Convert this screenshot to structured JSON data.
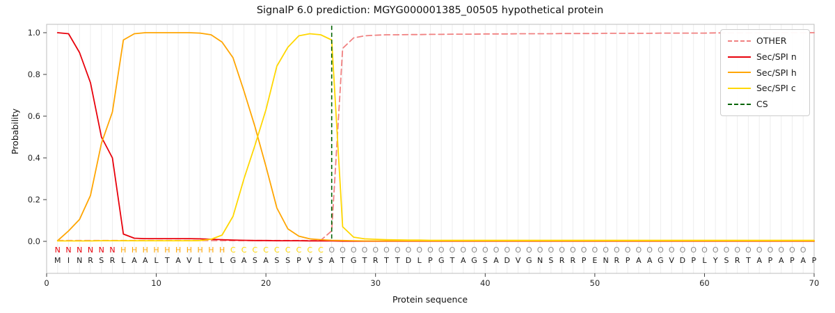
{
  "chart_data": {
    "type": "line",
    "title": "SignalP 6.0 prediction: MGYG000001385_00505 hypothetical protein",
    "xlabel": "Protein sequence",
    "ylabel": "Probability",
    "xlim": [
      0,
      70
    ],
    "ylim": [
      -0.15,
      1.04
    ],
    "xticks": [
      0,
      10,
      20,
      30,
      40,
      50,
      60,
      70
    ],
    "yticks": [
      0.0,
      0.2,
      0.4,
      0.6,
      0.8,
      1.0
    ],
    "grid": "vertical-per-residue",
    "legend_position": "upper-right",
    "x_start": 1,
    "series": [
      {
        "name": "OTHER",
        "color": "#f08080",
        "dashed": true,
        "values": [
          0.004,
          0.004,
          0.004,
          0.004,
          0.004,
          0.004,
          0.004,
          0.004,
          0.004,
          0.004,
          0.004,
          0.004,
          0.004,
          0.004,
          0.004,
          0.004,
          0.004,
          0.004,
          0.004,
          0.004,
          0.004,
          0.004,
          0.004,
          0.004,
          0.005,
          0.05,
          0.925,
          0.975,
          0.985,
          0.988,
          0.99,
          0.99,
          0.991,
          0.991,
          0.992,
          0.992,
          0.993,
          0.993,
          0.993,
          0.994,
          0.994,
          0.994,
          0.995,
          0.995,
          0.995,
          0.995,
          0.996,
          0.996,
          0.996,
          0.996,
          0.997,
          0.997,
          0.997,
          0.997,
          0.997,
          0.998,
          0.998,
          0.998,
          0.998,
          0.998,
          0.999,
          0.999,
          0.999,
          0.999,
          0.999,
          0.999,
          1.0,
          1.0,
          1.0,
          1.0
        ]
      },
      {
        "name": "Sec/SPI n",
        "color": "#e8000b",
        "dashed": false,
        "values": [
          1.0,
          0.995,
          0.905,
          0.76,
          0.5,
          0.4,
          0.035,
          0.015,
          0.013,
          0.013,
          0.013,
          0.013,
          0.013,
          0.012,
          0.01,
          0.008,
          0.006,
          0.005,
          0.004,
          0.004,
          0.003,
          0.003,
          0.003,
          0.002,
          0.002,
          0.002,
          0.001,
          0.001,
          0.001,
          0.001,
          0.001,
          0.001,
          0.001,
          0.001,
          0.001,
          0.001,
          0.001,
          0.001,
          0.001,
          0.001,
          0.001,
          0.001,
          0.001,
          0.001,
          0.001,
          0.001,
          0.001,
          0.001,
          0.001,
          0.001,
          0.001,
          0.001,
          0.001,
          0.001,
          0.001,
          0.001,
          0.001,
          0.001,
          0.001,
          0.001,
          0.001,
          0.001,
          0.001,
          0.001,
          0.001,
          0.001,
          0.001,
          0.001,
          0.001,
          0.001
        ]
      },
      {
        "name": "Sec/SPI h",
        "color": "#ffa500",
        "dashed": false,
        "values": [
          0.003,
          0.05,
          0.105,
          0.22,
          0.47,
          0.62,
          0.965,
          0.995,
          1.0,
          1.0,
          1.0,
          1.0,
          1.0,
          0.998,
          0.99,
          0.955,
          0.88,
          0.72,
          0.55,
          0.36,
          0.16,
          0.06,
          0.025,
          0.012,
          0.008,
          0.005,
          0.004,
          0.003,
          0.002,
          0.002,
          0.002,
          0.002,
          0.002,
          0.002,
          0.002,
          0.002,
          0.002,
          0.002,
          0.002,
          0.002,
          0.002,
          0.002,
          0.002,
          0.002,
          0.002,
          0.002,
          0.002,
          0.002,
          0.002,
          0.002,
          0.002,
          0.002,
          0.002,
          0.002,
          0.002,
          0.002,
          0.002,
          0.002,
          0.002,
          0.002,
          0.002,
          0.002,
          0.002,
          0.002,
          0.002,
          0.002,
          0.002,
          0.002,
          0.002,
          0.002
        ]
      },
      {
        "name": "Sec/SPI c",
        "color": "#ffd700",
        "dashed": false,
        "values": [
          0.002,
          0.002,
          0.002,
          0.002,
          0.003,
          0.003,
          0.003,
          0.003,
          0.003,
          0.003,
          0.003,
          0.003,
          0.003,
          0.004,
          0.01,
          0.03,
          0.12,
          0.3,
          0.46,
          0.63,
          0.84,
          0.93,
          0.985,
          0.995,
          0.99,
          0.965,
          0.07,
          0.02,
          0.012,
          0.01,
          0.008,
          0.007,
          0.006,
          0.006,
          0.005,
          0.005,
          0.005,
          0.005,
          0.005,
          0.005,
          0.005,
          0.005,
          0.005,
          0.005,
          0.005,
          0.005,
          0.005,
          0.005,
          0.005,
          0.005,
          0.005,
          0.005,
          0.005,
          0.005,
          0.005,
          0.005,
          0.005,
          0.005,
          0.005,
          0.005,
          0.005,
          0.005,
          0.005,
          0.005,
          0.005,
          0.005,
          0.005,
          0.005,
          0.005,
          0.005
        ]
      }
    ],
    "cs_line": {
      "label": "CS",
      "x": 26,
      "color": "#006400",
      "dashed": true
    },
    "residue_annotations": {
      "labels": "NNNNNNHHHHHHHHHHCCCCCCCCCOOOOOOOOOOOOOOOOOOOOOOOOOOOOOOOOOOOOOOOOOOOO",
      "label_colors": {
        "N": "#e8000b",
        "H": "#ffa500",
        "C": "#ffd700",
        "O": "#8c8c8c"
      },
      "sequence": "MINRSRLAALTAVLLLGASASSPVSATGTRTTDLPGTAGSADVGNSRRPENRPAAGVDPLYSRTAPAPAP"
    }
  },
  "legend": {
    "entries": [
      {
        "label": "OTHER",
        "color": "#f08080",
        "dashed": true
      },
      {
        "label": "Sec/SPI n",
        "color": "#e8000b",
        "dashed": false
      },
      {
        "label": "Sec/SPI h",
        "color": "#ffa500",
        "dashed": false
      },
      {
        "label": "Sec/SPI c",
        "color": "#ffd700",
        "dashed": false
      },
      {
        "label": "CS",
        "color": "#006400",
        "dashed": true
      }
    ]
  }
}
